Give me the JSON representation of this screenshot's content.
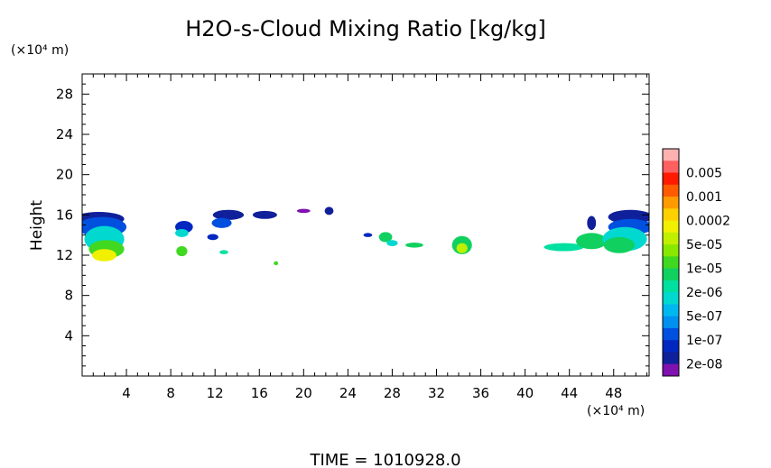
{
  "chart_data": {
    "type": "heatmap",
    "title": "H2O-s-Cloud Mixing Ratio [kg/kg]",
    "ylabel": "Height",
    "x_unit_label": "(×10⁴ m)",
    "y_unit_label": "(×10⁴ m)",
    "footer": "TIME =  1010928.0",
    "xlim": [
      0,
      51.2
    ],
    "ylim": [
      0,
      30
    ],
    "x_ticks": [
      4,
      8,
      12,
      16,
      20,
      24,
      28,
      32,
      36,
      40,
      44,
      48
    ],
    "y_ticks": [
      4,
      8,
      12,
      16,
      20,
      24,
      28
    ],
    "x_minor_step": 1,
    "y_minor_step": 1,
    "colorbar": {
      "levels": [
        {
          "label": "",
          "color": "#ffb0b0"
        },
        {
          "label": "0.005",
          "color": "#ff6060"
        },
        {
          "label": "",
          "color": "#ff1a00"
        },
        {
          "label": "0.001",
          "color": "#ff5a00"
        },
        {
          "label": "",
          "color": "#ff9a00"
        },
        {
          "label": "0.0002",
          "color": "#ffd000"
        },
        {
          "label": "",
          "color": "#f0f000"
        },
        {
          "label": "5e-05",
          "color": "#c0f000"
        },
        {
          "label": "",
          "color": "#88e800"
        },
        {
          "label": "1e-05",
          "color": "#40d820"
        },
        {
          "label": "",
          "color": "#10d060"
        },
        {
          "label": "2e-06",
          "color": "#00e0a0"
        },
        {
          "label": "",
          "color": "#00d8d0"
        },
        {
          "label": "5e-07",
          "color": "#00b8f0"
        },
        {
          "label": "",
          "color": "#0090f0"
        },
        {
          "label": "1e-07",
          "color": "#0050e0"
        },
        {
          "label": "",
          "color": "#0028c0"
        },
        {
          "label": "2e-08",
          "color": "#10209a"
        },
        {
          "label": "",
          "color": "#8010b0"
        }
      ]
    },
    "cloud_blobs": [
      {
        "x": 1.5,
        "y": 15.6,
        "rx": 2.3,
        "ry": 0.7,
        "level": 17
      },
      {
        "x": 1.8,
        "y": 14.8,
        "rx": 2.2,
        "ry": 1.0,
        "level": 15
      },
      {
        "x": 2.0,
        "y": 13.6,
        "rx": 1.8,
        "ry": 1.3,
        "level": 12
      },
      {
        "x": 2.2,
        "y": 12.6,
        "rx": 1.6,
        "ry": 0.9,
        "level": 9
      },
      {
        "x": 2.0,
        "y": 12.0,
        "rx": 1.1,
        "ry": 0.6,
        "level": 6
      },
      {
        "x": 9.2,
        "y": 14.8,
        "rx": 0.8,
        "ry": 0.6,
        "level": 16
      },
      {
        "x": 9.0,
        "y": 14.2,
        "rx": 0.6,
        "ry": 0.4,
        "level": 12
      },
      {
        "x": 9.0,
        "y": 12.4,
        "rx": 0.5,
        "ry": 0.5,
        "level": 9
      },
      {
        "x": 13.2,
        "y": 16.0,
        "rx": 1.4,
        "ry": 0.5,
        "level": 17
      },
      {
        "x": 12.6,
        "y": 15.2,
        "rx": 0.9,
        "ry": 0.5,
        "level": 15
      },
      {
        "x": 11.8,
        "y": 13.8,
        "rx": 0.5,
        "ry": 0.3,
        "level": 16
      },
      {
        "x": 12.8,
        "y": 12.3,
        "rx": 0.4,
        "ry": 0.2,
        "level": 11
      },
      {
        "x": 16.5,
        "y": 16.0,
        "rx": 1.1,
        "ry": 0.4,
        "level": 17
      },
      {
        "x": 17.5,
        "y": 11.2,
        "rx": 0.2,
        "ry": 0.2,
        "level": 9
      },
      {
        "x": 20.0,
        "y": 16.4,
        "rx": 0.6,
        "ry": 0.2,
        "level": 18
      },
      {
        "x": 22.3,
        "y": 16.4,
        "rx": 0.4,
        "ry": 0.4,
        "level": 17
      },
      {
        "x": 25.8,
        "y": 14.0,
        "rx": 0.4,
        "ry": 0.2,
        "level": 16
      },
      {
        "x": 27.4,
        "y": 13.8,
        "rx": 0.6,
        "ry": 0.5,
        "level": 10
      },
      {
        "x": 28.0,
        "y": 13.2,
        "rx": 0.5,
        "ry": 0.3,
        "level": 12
      },
      {
        "x": 30.0,
        "y": 13.0,
        "rx": 0.8,
        "ry": 0.25,
        "level": 10
      },
      {
        "x": 34.3,
        "y": 13.0,
        "rx": 0.9,
        "ry": 0.9,
        "level": 10
      },
      {
        "x": 34.3,
        "y": 12.7,
        "rx": 0.5,
        "ry": 0.5,
        "level": 7
      },
      {
        "x": 43.5,
        "y": 12.8,
        "rx": 1.8,
        "ry": 0.4,
        "level": 11
      },
      {
        "x": 46.0,
        "y": 13.4,
        "rx": 1.4,
        "ry": 0.8,
        "level": 10
      },
      {
        "x": 46.0,
        "y": 15.2,
        "rx": 0.4,
        "ry": 0.7,
        "level": 17
      },
      {
        "x": 49.5,
        "y": 15.8,
        "rx": 2.0,
        "ry": 0.7,
        "level": 17
      },
      {
        "x": 49.5,
        "y": 14.8,
        "rx": 2.0,
        "ry": 0.8,
        "level": 15
      },
      {
        "x": 49.0,
        "y": 13.6,
        "rx": 2.0,
        "ry": 1.2,
        "level": 12
      },
      {
        "x": 48.5,
        "y": 13.0,
        "rx": 1.4,
        "ry": 0.8,
        "level": 10
      }
    ]
  }
}
